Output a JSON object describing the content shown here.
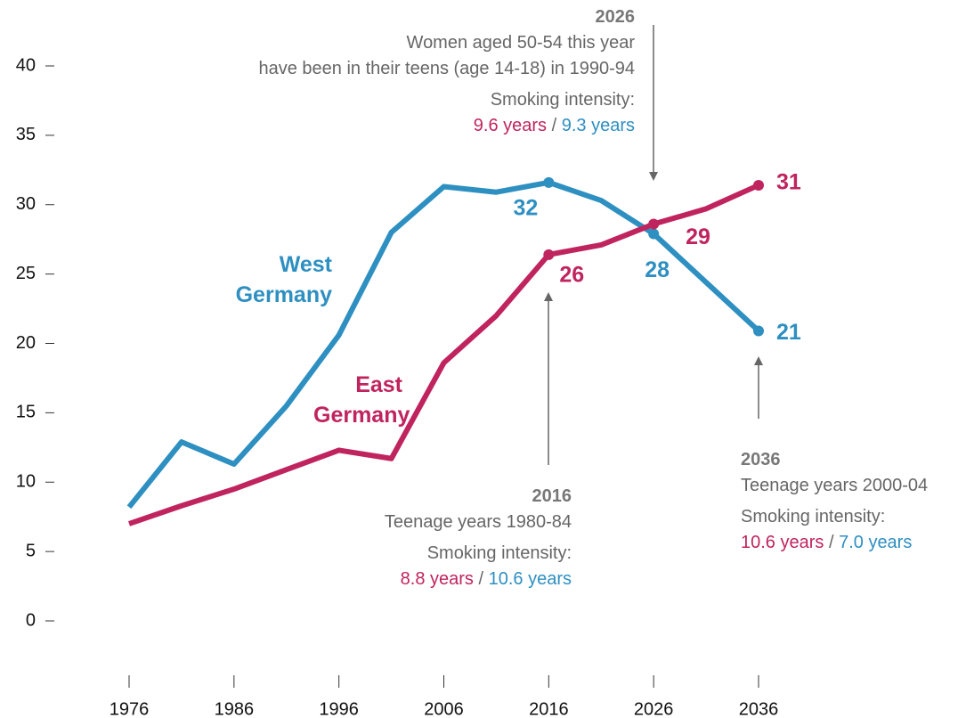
{
  "chart_data": {
    "type": "line",
    "x": [
      1976,
      1981,
      1986,
      1991,
      1996,
      2001,
      2006,
      2011,
      2016,
      2021,
      2026,
      2031,
      2036
    ],
    "xlim": [
      1976,
      2036
    ],
    "xticks": [
      1976,
      1986,
      1996,
      2006,
      2016,
      2026,
      2036
    ],
    "ylim": [
      0,
      40
    ],
    "yticks": [
      0,
      5,
      10,
      15,
      20,
      25,
      30,
      35,
      40
    ],
    "series": [
      {
        "name": "West Germany",
        "color": "#2e8fc1",
        "values": [
          8.2,
          12.9,
          11.3,
          15.5,
          20.6,
          28.0,
          31.3,
          30.9,
          31.6,
          30.3,
          27.9,
          24.4,
          20.9
        ],
        "value_labels": [
          null,
          null,
          null,
          null,
          null,
          null,
          null,
          null,
          "32",
          null,
          "28",
          null,
          "21"
        ]
      },
      {
        "name": "East Germany",
        "color": "#c0245f",
        "values": [
          7.0,
          8.3,
          9.5,
          10.9,
          12.3,
          11.7,
          18.6,
          22.0,
          26.4,
          27.1,
          28.6,
          29.7,
          31.4
        ],
        "value_labels": [
          null,
          null,
          null,
          null,
          null,
          null,
          null,
          null,
          "26",
          null,
          "29",
          null,
          "31"
        ]
      }
    ],
    "annotations": [
      {
        "year": "2026",
        "lines": [
          "Women aged 50-54 this year",
          "have been in their teens (age 14-18) in 1990-94"
        ],
        "intensity_label": "Smoking intensity:",
        "east": "9.6 years",
        "sep": "/",
        "west": "9.3 years"
      },
      {
        "year": "2016",
        "lines": [
          "Teenage years 1980-84"
        ],
        "intensity_label": "Smoking intensity:",
        "east": "8.8 years",
        "sep": "/",
        "west": "10.6 years"
      },
      {
        "year": "2036",
        "lines": [
          "Teenage years 2000-04"
        ],
        "intensity_label": "Smoking intensity:",
        "east": "10.6 years",
        "sep": "/",
        "west": "7.0 years"
      }
    ]
  }
}
